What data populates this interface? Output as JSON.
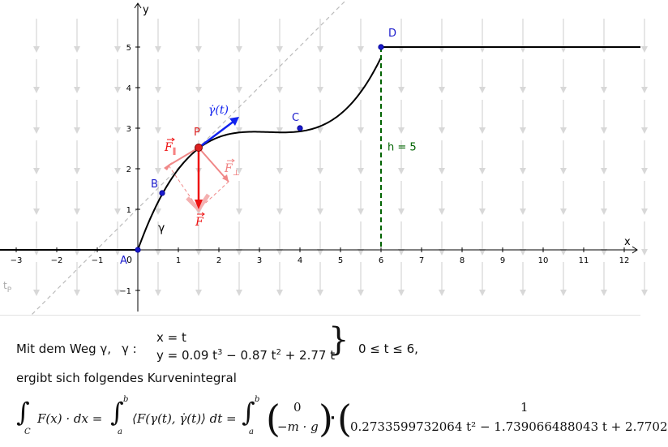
{
  "graph": {
    "x_ticks": [
      "−3",
      "−2",
      "−1",
      "1",
      "2",
      "3",
      "4",
      "5",
      "6",
      "7",
      "8",
      "9",
      "10",
      "11",
      "12"
    ],
    "y_ticks": [
      "−1",
      "1",
      "2",
      "3",
      "4",
      "5"
    ],
    "x_axis_label": "x",
    "y_axis_label": "y",
    "origin_label": "0",
    "points": {
      "A": {
        "label": "A",
        "x": 0,
        "y": 0
      },
      "B": {
        "label": "B",
        "x": 0.6,
        "y": 1.4
      },
      "P": {
        "label": "P",
        "x": 1.5,
        "y": 2.52
      },
      "C": {
        "label": "C",
        "x": 4,
        "y": 3
      },
      "D": {
        "label": "D",
        "x": 6,
        "y": 5
      }
    },
    "curve_label": "γ",
    "tangent_label": "t",
    "tangent_sub": "P",
    "velocity_label": "γ̇(t)",
    "force_label": "F",
    "force_parallel_label": "F",
    "force_parallel_sub": "∥",
    "force_perp_label": "F",
    "force_perp_sub": "⊥",
    "height_label": "h = 5",
    "colors": {
      "curve": "#000000",
      "points": "#1a1acc",
      "point_p": "#dd2222",
      "force": "#ee1111",
      "force_light": "#f08888",
      "velocity": "#1122ee",
      "height": "#006400",
      "field": "#d8d8d8",
      "tangent": "#bbbbbb"
    }
  },
  "algebra": {
    "line1_prefix": "Mit dem Weg γ,",
    "gamma_label": "γ :",
    "x_eq": "x = t",
    "y_eq_prefix": "y = 0.09 t",
    "y_eq_mid": " − 0.87 t",
    "y_eq_end": " + 2.77 t",
    "exp3": "3",
    "exp2": "2",
    "range_text": "0  ≤  t  ≤  6,",
    "line2": "ergibt sich folgendes Kurvenintegral",
    "integral_left": "F(x) · dx =",
    "int_sub_c": "C",
    "int_sub_a": "a",
    "int_sup_b": "b",
    "integral_mid": "⟨F(γ(t), γ̇(t)⟩ dt =",
    "vec1_top": "0",
    "vec1_bottom": "−m · g",
    "dot": "·",
    "vec2_top": "1",
    "vec2_bottom": "0.2733599732064 t² − 1.739066488043 t + 2.7702"
  }
}
